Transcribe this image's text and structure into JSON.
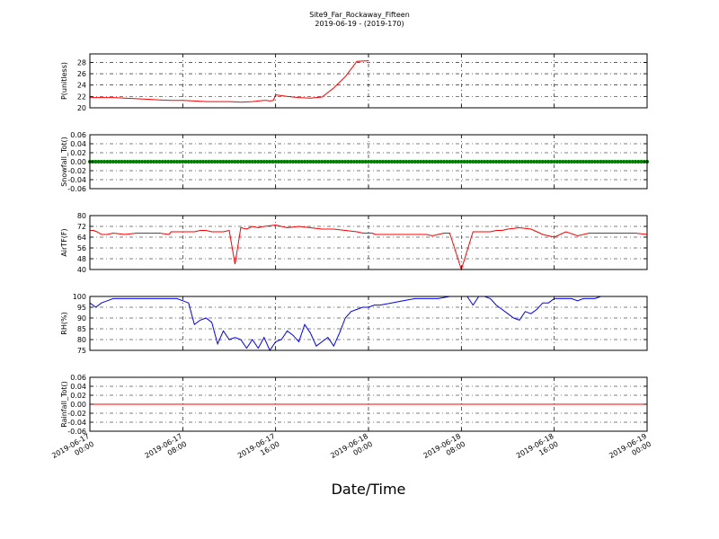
{
  "title": "Site9_Far_Rockaway_Fifteen",
  "subtitle": "2019-06-19 - (2019-170)",
  "xlabel": "Date/Time",
  "x_ticks": [
    "2019-06-17\n00:00",
    "2019-06-17\n08:00",
    "2019-06-17\n16:00",
    "2019-06-18\n00:00",
    "2019-06-18\n08:00",
    "2019-06-18\n16:00",
    "2019-06-19\n00:00"
  ],
  "chart_data": [
    {
      "type": "line",
      "ylabel": "P(unitless)",
      "ylim": [
        20,
        29.5
      ],
      "yticks": [
        20,
        22,
        24,
        26,
        28
      ],
      "color": "#ff0000",
      "grid": true,
      "x": [
        0,
        1,
        2,
        3,
        4,
        5,
        6,
        7,
        8,
        9,
        10,
        11,
        11.5,
        12,
        12.5,
        13,
        14,
        14.5,
        15,
        15.2,
        15.5,
        15.8,
        16,
        17,
        18,
        19,
        20,
        21,
        22,
        23,
        24
      ],
      "values": [
        21.8,
        21.8,
        21.8,
        21.7,
        21.6,
        21.5,
        21.4,
        21.3,
        21.3,
        21.2,
        21.1,
        21.1,
        21.1,
        21.1,
        21.05,
        21.0,
        21.1,
        21.2,
        21.3,
        21.3,
        21.2,
        21.3,
        22.3,
        22.0,
        21.8,
        21.7,
        21.9,
        23.5,
        25.5,
        28.2,
        28.3
      ]
    },
    {
      "type": "scatter",
      "ylabel": "Snowfall_Tot()",
      "ylim": [
        -0.06,
        0.06
      ],
      "yticks": [
        -0.06,
        -0.04,
        -0.02,
        0.0,
        0.02,
        0.04,
        0.06
      ],
      "color": "#008000",
      "grid": true,
      "constant": 0.0
    },
    {
      "type": "line",
      "ylabel": "AirTF(F)",
      "ylim": [
        40,
        80
      ],
      "yticks": [
        40,
        48,
        56,
        64,
        72,
        80
      ],
      "color": "#ff0000",
      "grid": true,
      "x": [
        0,
        0.3,
        0.6,
        1,
        1.5,
        2,
        3,
        4,
        5,
        6,
        6.8,
        7,
        7.2,
        7.6,
        8,
        8.5,
        9,
        9.5,
        10,
        10.5,
        11,
        11.5,
        12,
        12.5,
        13,
        13.5,
        14,
        14.5,
        15,
        16,
        17,
        18,
        19,
        20,
        21,
        22,
        23,
        23.5,
        23.9,
        24,
        24.3,
        24.6,
        25,
        26,
        27,
        28,
        28.5,
        29,
        29.5,
        30,
        30.5,
        31,
        32,
        33,
        33.5,
        34,
        34.5,
        35,
        35.5,
        36,
        37,
        38,
        39,
        40,
        41,
        42,
        43,
        44,
        45,
        46,
        47,
        48
      ],
      "values": [
        69,
        69,
        68,
        66,
        66,
        67,
        66,
        67,
        67,
        67,
        66,
        68,
        68,
        68,
        68,
        68,
        68,
        69,
        69,
        68,
        68,
        68,
        69,
        44,
        71,
        70,
        72,
        71,
        72,
        73,
        71,
        72,
        71,
        70,
        70,
        69,
        68,
        67,
        67,
        67,
        67,
        66,
        66,
        66,
        66,
        66,
        66,
        66,
        65,
        66,
        67,
        67,
        40,
        68,
        68,
        68,
        68,
        69,
        69,
        70,
        71,
        70,
        66,
        64,
        68,
        65,
        67,
        67,
        67,
        67,
        67,
        66
      ]
    },
    {
      "type": "line",
      "ylabel": "RH(%)",
      "ylim": [
        75,
        100
      ],
      "yticks": [
        75,
        80,
        85,
        90,
        95,
        100
      ],
      "color": "#0000ff",
      "grid": true,
      "x": [
        0,
        0.5,
        1,
        1.5,
        2,
        2.5,
        3,
        3.5,
        4,
        4.5,
        5,
        5.5,
        6,
        6.5,
        7,
        7.5,
        8,
        8.5,
        9,
        9.5,
        10,
        10.5,
        11,
        11.5,
        12,
        12.5,
        13,
        13.5,
        14,
        14.5,
        15,
        15.5,
        16,
        16.5,
        17,
        17.5,
        18,
        18.5,
        19,
        19.5,
        20,
        20.5,
        21,
        21.5,
        22,
        22.5,
        23,
        23.5,
        24,
        24.5,
        25,
        26,
        27,
        28,
        29,
        30,
        31,
        31.5,
        32,
        32.5,
        33,
        33.5,
        34,
        34.5,
        35,
        35.5,
        36,
        36.5,
        37,
        37.5,
        38,
        38.5,
        39,
        39.5,
        40,
        40.5,
        41,
        41.5,
        42,
        42.5,
        43,
        43.5,
        44,
        45,
        46,
        47,
        48
      ],
      "values": [
        97,
        95,
        97,
        98,
        99,
        99,
        99,
        99,
        99,
        99,
        99,
        99,
        99,
        99,
        99,
        99,
        98,
        97,
        87,
        89,
        90,
        88,
        78,
        84,
        80,
        81,
        80,
        76,
        80,
        76,
        81,
        75,
        79,
        80,
        84,
        82,
        79,
        87,
        83,
        77,
        79,
        81,
        77,
        83,
        90,
        93,
        94,
        95,
        95,
        96,
        96,
        97,
        98,
        99,
        99,
        99,
        100,
        100,
        100,
        100,
        96,
        100,
        100,
        99,
        96,
        94,
        92,
        90,
        89,
        93,
        92,
        94,
        97,
        97,
        99,
        99,
        99,
        99,
        98,
        99,
        99,
        99,
        100,
        100,
        100,
        100,
        100
      ]
    },
    {
      "type": "line",
      "ylabel": "Rainfall_Tot()",
      "ylim": [
        -0.06,
        0.06
      ],
      "yticks": [
        -0.06,
        -0.04,
        -0.02,
        0.0,
        0.02,
        0.04,
        0.06
      ],
      "color": "#ff0000",
      "grid": true,
      "constant": 0.0
    }
  ]
}
